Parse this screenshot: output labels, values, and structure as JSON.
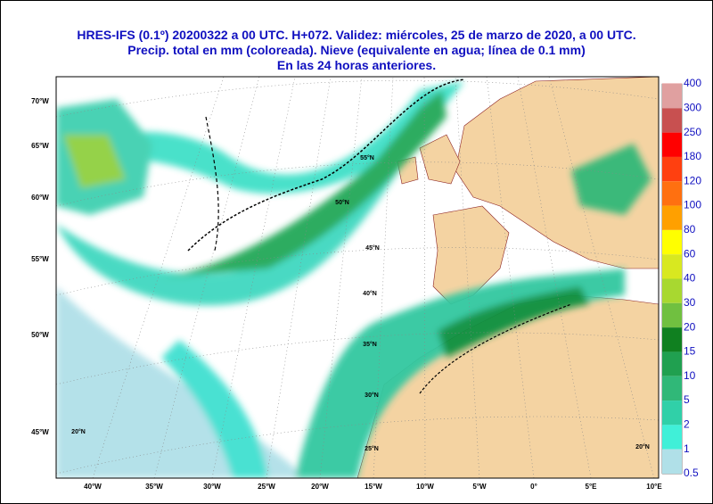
{
  "title_lines": [
    "HRES-IFS (0.1º) 20200322 a 00 UTC.  H+072. Validez: miércoles, 25 de marzo de 2020,  a  00 UTC.",
    "Precip. total en mm (coloreada). Nieve (equivalente en agua; línea de 0.1 mm)",
    "En las 24 horas anteriores."
  ],
  "legend": {
    "levels": [
      {
        "label": "400",
        "color": "#f2c8c8"
      },
      {
        "label": "300",
        "color": "#e0a0a0"
      },
      {
        "label": "250",
        "color": "#c85050"
      },
      {
        "label": "180",
        "color": "#ff0000"
      },
      {
        "label": "120",
        "color": "#ff4010"
      },
      {
        "label": "100",
        "color": "#ff7010"
      },
      {
        "label": "80",
        "color": "#ffa000"
      },
      {
        "label": "60",
        "color": "#ffff00"
      },
      {
        "label": "40",
        "color": "#d8e820"
      },
      {
        "label": "30",
        "color": "#a8d830"
      },
      {
        "label": "20",
        "color": "#70c040"
      },
      {
        "label": "15",
        "color": "#108020"
      },
      {
        "label": "10",
        "color": "#20a050"
      },
      {
        "label": "5",
        "color": "#30b878"
      },
      {
        "label": "2",
        "color": "#30d0a8"
      },
      {
        "label": "1",
        "color": "#40f0d8"
      },
      {
        "label": "0.5",
        "color": "#b0e0e8"
      }
    ]
  },
  "map": {
    "x_labels": [
      "40°W",
      "35°W",
      "30°W",
      "25°W",
      "20°W",
      "15°W",
      "10°W",
      "5°W",
      "0°",
      "5°E",
      "10°E"
    ],
    "y_labels": [
      "70°W",
      "65°W",
      "60°W",
      "55°W",
      "50°W",
      "45°W"
    ],
    "grid_labels": [
      "55°N",
      "50°N",
      "45°N",
      "40°N",
      "35°N",
      "30°N",
      "25°N",
      "20°N",
      "20°N"
    ]
  }
}
